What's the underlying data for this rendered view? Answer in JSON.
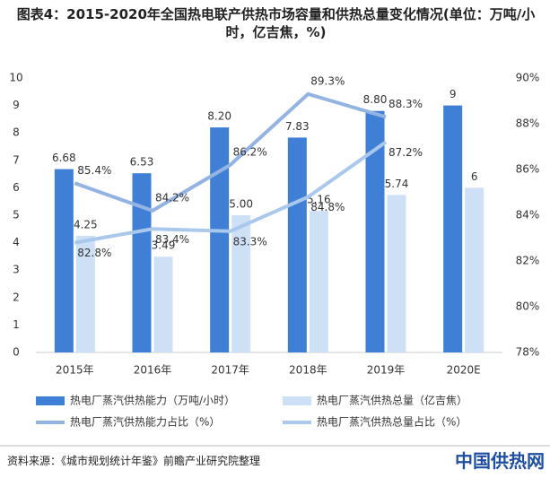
{
  "chart_data": {
    "type": "bar",
    "title": "图表4：2015-2020年全国热电联产供热市场容量和供热总量变化情况(单位：万吨/小时，亿吉焦，%)",
    "categories": [
      "2015年",
      "2016年",
      "2017年",
      "2018年",
      "2019年",
      "2020E"
    ],
    "series": [
      {
        "name": "热电厂蒸汽供热能力（万吨/小时）",
        "type": "bar",
        "color": "#3f7fd6",
        "values": [
          6.68,
          6.53,
          8.2,
          7.83,
          8.8,
          9
        ],
        "value_labels": [
          "6.68",
          "6.53",
          "8.20",
          "7.83",
          "8.80",
          "9"
        ]
      },
      {
        "name": "热电厂蒸汽供热总量（亿吉焦）",
        "type": "bar",
        "color": "#cde0f6",
        "values": [
          4.25,
          3.49,
          5,
          5.16,
          5.74,
          6
        ],
        "value_labels": [
          "4.25",
          "3.49",
          "5.00",
          "5.16",
          "5.74",
          "6"
        ]
      },
      {
        "name": "热电厂蒸汽供热能力占比（%）",
        "type": "line",
        "axis": "y2",
        "color": "#93b4e2",
        "values": [
          85.4,
          84.2,
          86.2,
          89.3,
          88.3,
          null
        ],
        "value_labels": [
          "85.4%",
          "84.2%",
          "86.2%",
          "89.3%",
          "88.3%",
          null
        ]
      },
      {
        "name": "热电厂蒸汽供热总量占比（%）",
        "type": "line",
        "axis": "y2",
        "color": "#a9c8ec",
        "values": [
          82.8,
          83.4,
          83.3,
          84.8,
          87.2,
          null
        ],
        "value_labels": [
          "82.8%",
          "83.4%",
          "83.3%",
          "84.8%",
          "87.2%",
          null
        ]
      }
    ],
    "ylim": [
      0,
      10
    ],
    "yticks": [
      0,
      1,
      2,
      3,
      4,
      5,
      6,
      7,
      8,
      9,
      10
    ],
    "y2lim": [
      78,
      90
    ],
    "y2ticks": [
      {
        "value": 78,
        "label": "78%"
      },
      {
        "value": 80,
        "label": "80%"
      },
      {
        "value": 82,
        "label": "82%"
      },
      {
        "value": 84,
        "label": "84%"
      },
      {
        "value": 86,
        "label": "86%"
      },
      {
        "value": 88,
        "label": "88%"
      },
      {
        "value": 90,
        "label": "90%"
      }
    ],
    "grid": false,
    "source": "资料来源：《城市规划统计年鉴》前瞻产业研究院整理",
    "brand": "中国供热网"
  }
}
